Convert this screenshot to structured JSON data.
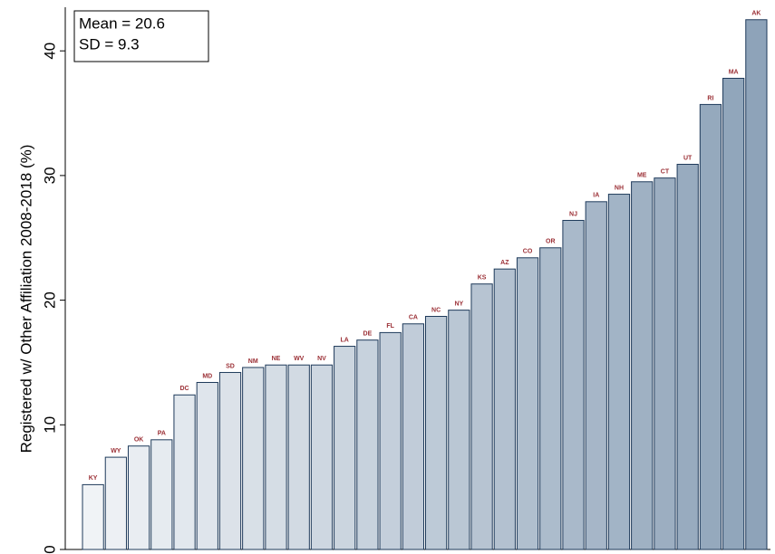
{
  "chart_data": {
    "type": "bar",
    "ylabel": "Registered w/ Other Affiliation 2008-2018 (%)",
    "annotations": [
      "Mean = 20.6",
      "SD = 9.3"
    ],
    "categories": [
      "KY",
      "WY",
      "OK",
      "PA",
      "DC",
      "MD",
      "SD",
      "NM",
      "NE",
      "WV",
      "NV",
      "LA",
      "DE",
      "FL",
      "CA",
      "NC",
      "NY",
      "KS",
      "AZ",
      "CO",
      "OR",
      "NJ",
      "IA",
      "NH",
      "ME",
      "CT",
      "UT",
      "RI",
      "MA",
      "AK"
    ],
    "values": [
      5.2,
      7.4,
      8.3,
      8.8,
      12.4,
      13.4,
      14.2,
      14.6,
      14.8,
      14.8,
      14.8,
      16.3,
      16.8,
      17.4,
      18.1,
      18.7,
      19.2,
      21.3,
      22.5,
      23.4,
      24.2,
      26.4,
      27.9,
      28.5,
      29.5,
      29.8,
      30.9,
      35.7,
      37.8,
      42.5
    ],
    "colors": [
      "#f0f3f6",
      "#edf0f4",
      "#e9edf2",
      "#e6ebf0",
      "#e2e8ee",
      "#dfe5ec",
      "#dce2e9",
      "#d8e0e7",
      "#d5dde5",
      "#d2dae3",
      "#ced7e1",
      "#cbd5df",
      "#c7d2dd",
      "#c4cfdb",
      "#c1ccd9",
      "#bdcad7",
      "#bac7d4",
      "#b7c4d2",
      "#b3c1d0",
      "#b0bfce",
      "#acbccc",
      "#a9b9ca",
      "#a6b6c8",
      "#a2b4c6",
      "#9fb1c3",
      "#9caec1",
      "#98abbf",
      "#95a9bd",
      "#91a6bb",
      "#8ea3b9"
    ],
    "edge_color": "#1e3a5a",
    "label_color": "#9b2f35",
    "ylim": [
      0,
      43.5
    ],
    "yticks": [
      0,
      10,
      20,
      30,
      40
    ]
  }
}
